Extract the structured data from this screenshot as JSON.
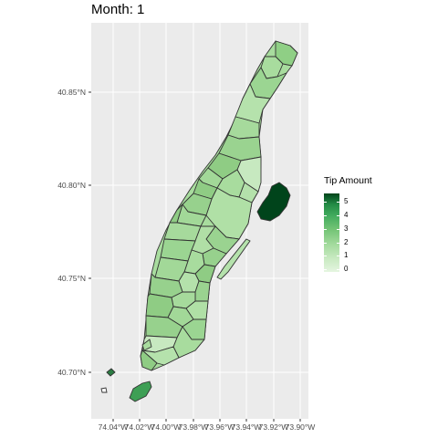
{
  "title": "Month: 1",
  "colors": {
    "panel": "#ebebeb",
    "grid": "#ffffff",
    "border": "#333333",
    "low": "#e5f5e0",
    "high": "#00441b"
  },
  "axes": {
    "y_ticks": [
      "40.70°N",
      "40.75°N",
      "40.80°N",
      "40.85°N"
    ],
    "x_ticks": [
      "74.04°W",
      "74.02°W",
      "74.00°W",
      "73.98°W",
      "73.96°W",
      "73.94°W",
      "73.92°W",
      "73.90°W"
    ]
  },
  "legend": {
    "title": "Tip Amount",
    "labels": [
      "5",
      "4",
      "3",
      "2",
      "1",
      "0"
    ]
  }
}
